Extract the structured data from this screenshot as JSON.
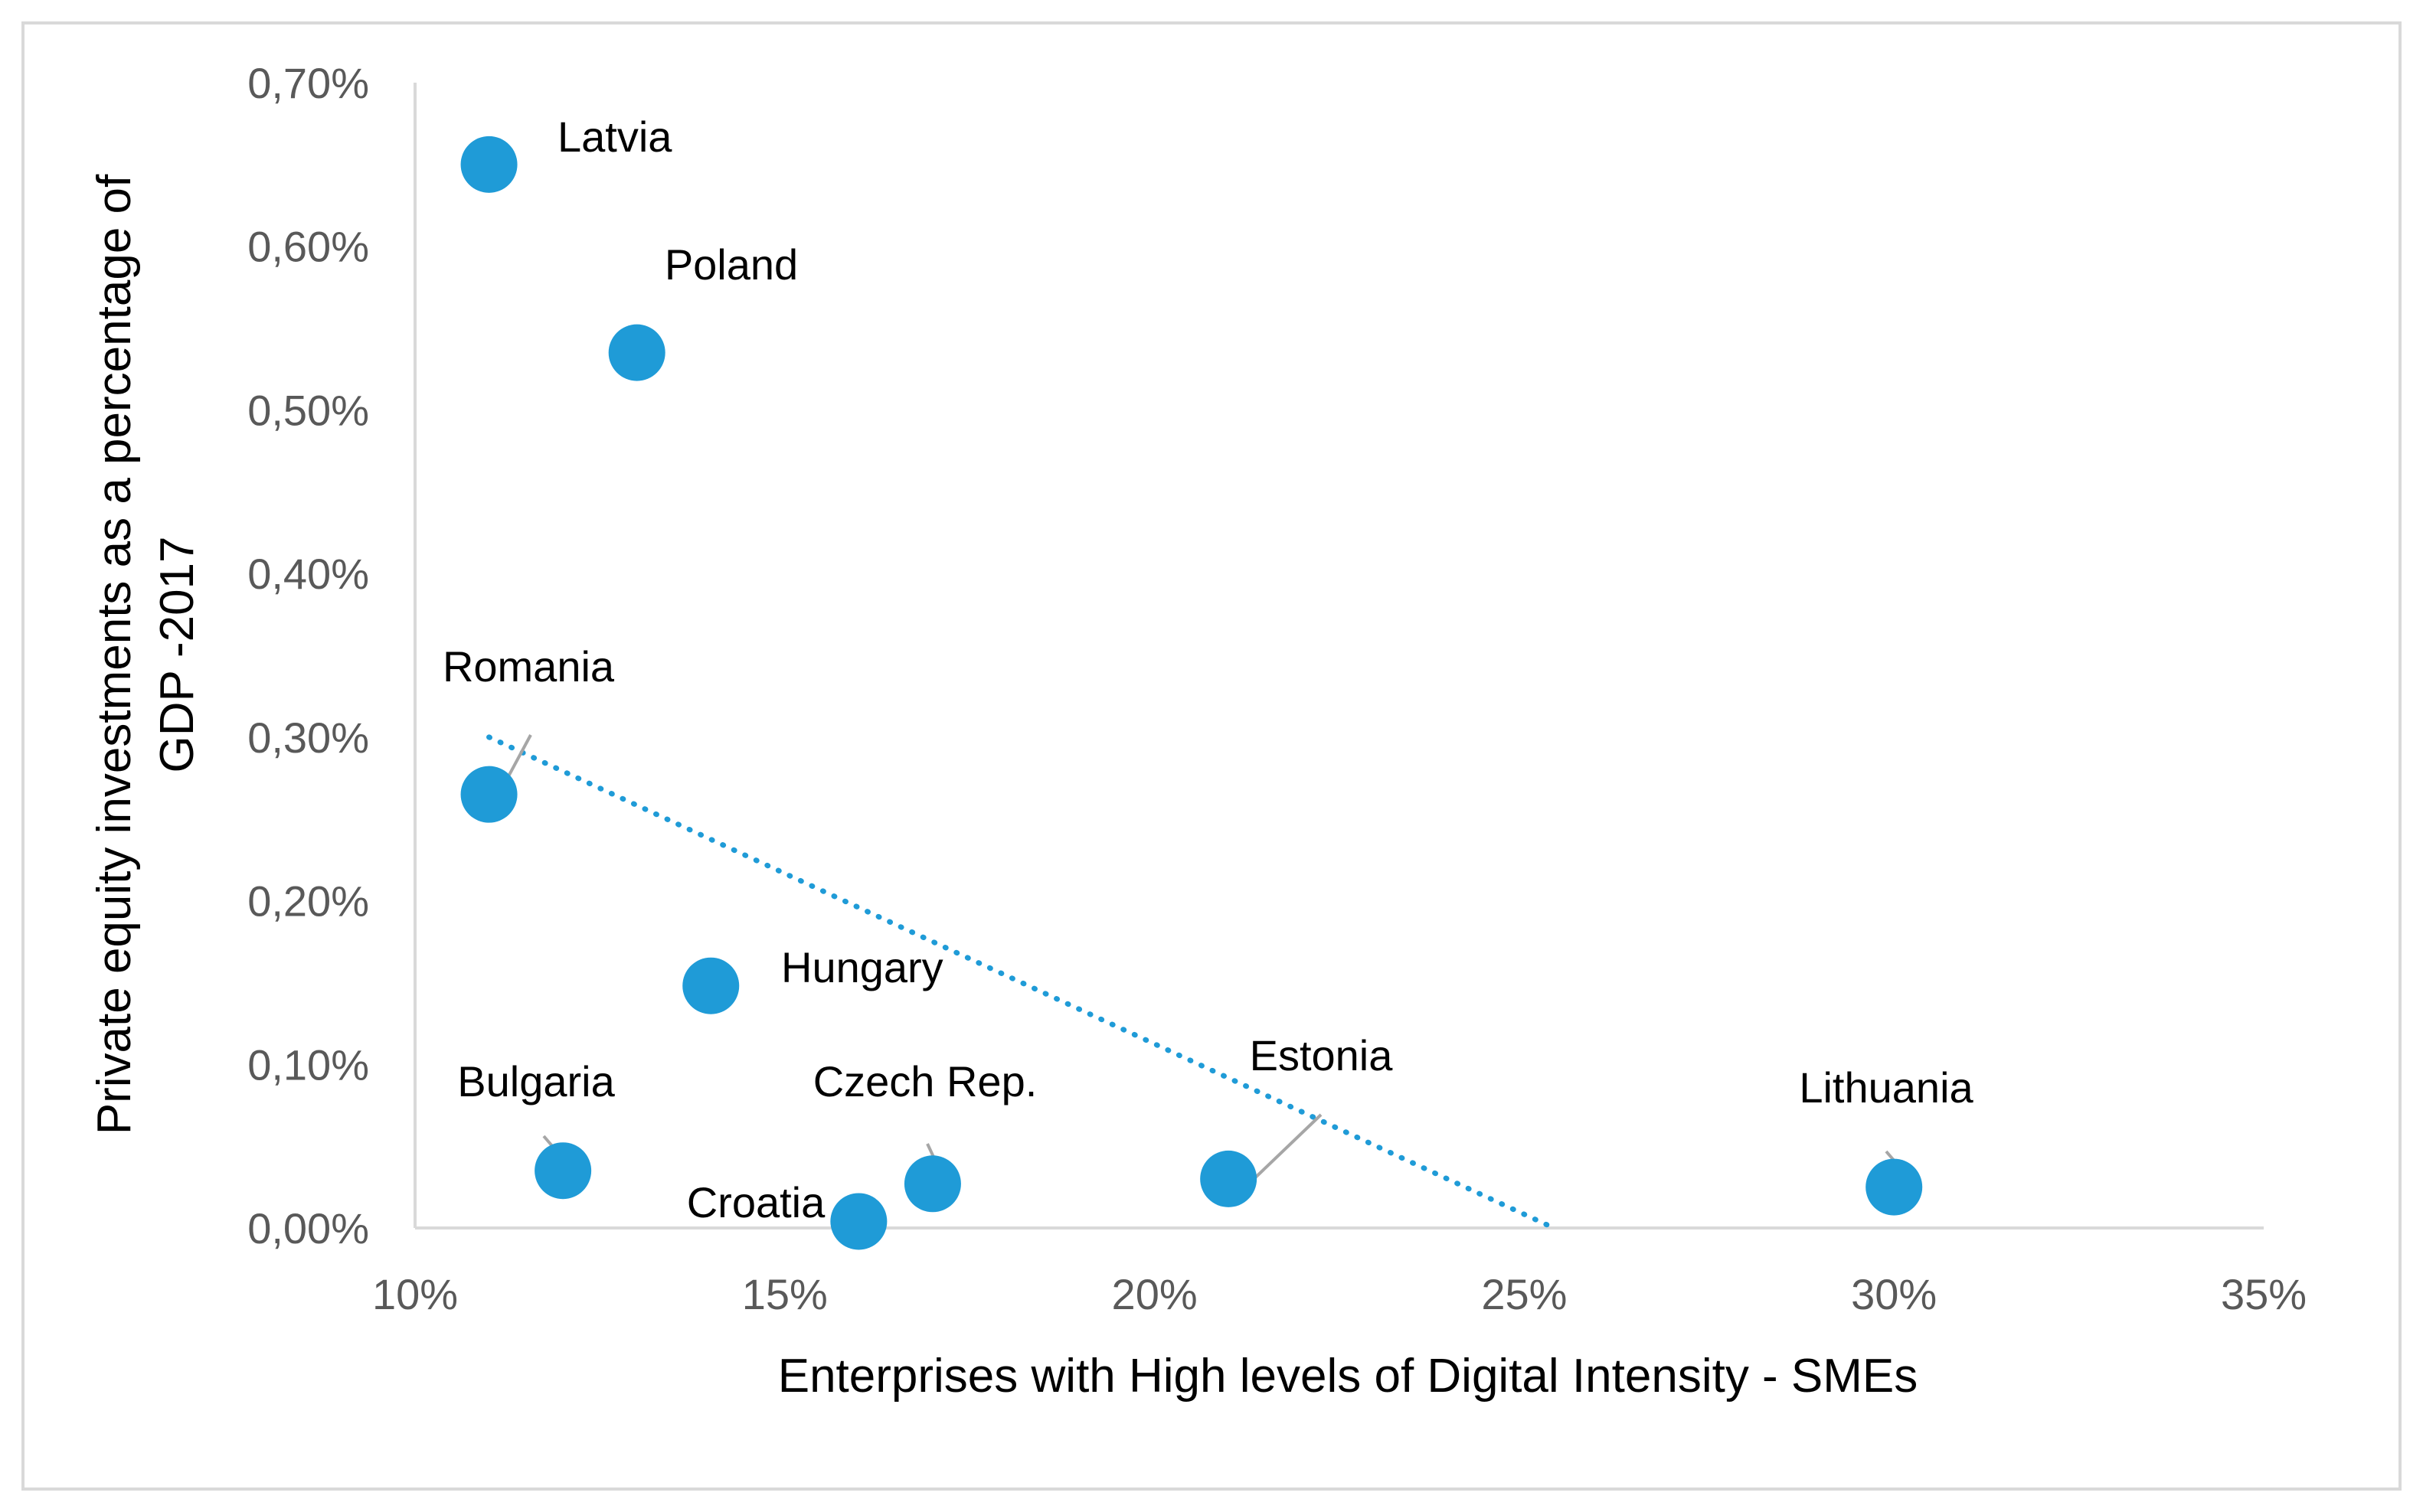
{
  "chart_data": {
    "type": "scatter",
    "title": "",
    "xlabel": "Enterprises with High levels of Digital Intensity - SMEs",
    "ylabel_lines": [
      "Private equity investments as a percentage of",
      "GDP -2017"
    ],
    "xlim": [
      0.1,
      0.35
    ],
    "ylim": [
      0,
      0.007
    ],
    "xticks": [
      0.1,
      0.15,
      0.2,
      0.25,
      0.3,
      0.35
    ],
    "xtick_labels": [
      "10%",
      "15%",
      "20%",
      "25%",
      "30%",
      "35%"
    ],
    "yticks": [
      0,
      0.001,
      0.002,
      0.003,
      0.004,
      0.005,
      0.006,
      0.007
    ],
    "ytick_labels": [
      "0,00%",
      "0,10%",
      "0,20%",
      "0,30%",
      "0,40%",
      "0,50%",
      "0,60%",
      "0,70%"
    ],
    "grid": false,
    "marker_color": "#1f9bd7",
    "trendline": {
      "style": "dotted",
      "color": "#1f9bd7",
      "start": {
        "x": 0.11,
        "y": 0.003
      },
      "end": {
        "x": 0.254,
        "y": 0.0
      }
    },
    "points": [
      {
        "label": "Latvia",
        "x": 0.11,
        "y": 0.0065
      },
      {
        "label": "Poland",
        "x": 0.13,
        "y": 0.00535
      },
      {
        "label": "Romania",
        "x": 0.11,
        "y": 0.00265
      },
      {
        "label": "Hungary",
        "x": 0.14,
        "y": 0.00148
      },
      {
        "label": "Bulgaria",
        "x": 0.12,
        "y": 0.00035
      },
      {
        "label": "Croatia",
        "x": 0.16,
        "y": 4e-05
      },
      {
        "label": "Czech Rep.",
        "x": 0.17,
        "y": 0.00027
      },
      {
        "label": "Estonia",
        "x": 0.21,
        "y": 0.0003
      },
      {
        "label": "Lithuania",
        "x": 0.3,
        "y": 0.00025
      }
    ]
  }
}
